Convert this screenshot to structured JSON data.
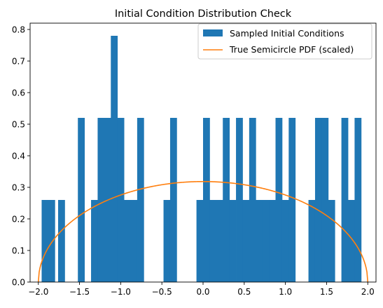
{
  "chart_data": {
    "type": "bar",
    "title": "Initial Condition Distribution Check",
    "xlabel": "",
    "ylabel": "",
    "xlim": [
      -2.1,
      2.1
    ],
    "ylim": [
      0,
      0.82
    ],
    "grid": false,
    "legend_position": "top-right",
    "x_ticks": [
      -2.0,
      -1.5,
      -1.0,
      -0.5,
      0.0,
      0.5,
      1.0,
      1.5,
      2.0
    ],
    "x_tick_labels": [
      "−2.0",
      "−1.5",
      "−1.0",
      "−0.5",
      "0.0",
      "0.5",
      "1.0",
      "1.5",
      "2.0"
    ],
    "y_ticks": [
      0.0,
      0.1,
      0.2,
      0.3,
      0.4,
      0.5,
      0.6,
      0.7,
      0.8
    ],
    "y_tick_labels": [
      "0.0",
      "0.1",
      "0.2",
      "0.3",
      "0.4",
      "0.5",
      "0.6",
      "0.7",
      "0.8"
    ],
    "series": [
      {
        "name": "Sampled Initial Conditions",
        "type": "histogram",
        "color": "#1f77b4",
        "bins": [
          {
            "x0": -1.96,
            "x1": -1.88,
            "value": 0.26
          },
          {
            "x0": -1.88,
            "x1": -1.8,
            "value": 0.26
          },
          {
            "x0": -1.76,
            "x1": -1.68,
            "value": 0.26
          },
          {
            "x0": -1.52,
            "x1": -1.44,
            "value": 0.52
          },
          {
            "x0": -1.36,
            "x1": -1.28,
            "value": 0.26
          },
          {
            "x0": -1.28,
            "x1": -1.2,
            "value": 0.52
          },
          {
            "x0": -1.2,
            "x1": -1.12,
            "value": 0.52
          },
          {
            "x0": -1.12,
            "x1": -1.04,
            "value": 0.78
          },
          {
            "x0": -1.04,
            "x1": -0.96,
            "value": 0.52
          },
          {
            "x0": -0.96,
            "x1": -0.88,
            "value": 0.26
          },
          {
            "x0": -0.88,
            "x1": -0.8,
            "value": 0.26
          },
          {
            "x0": -0.8,
            "x1": -0.72,
            "value": 0.52
          },
          {
            "x0": -0.48,
            "x1": -0.4,
            "value": 0.26
          },
          {
            "x0": -0.4,
            "x1": -0.32,
            "value": 0.52
          },
          {
            "x0": -0.08,
            "x1": 0.0,
            "value": 0.26
          },
          {
            "x0": 0.0,
            "x1": 0.08,
            "value": 0.52
          },
          {
            "x0": 0.08,
            "x1": 0.16,
            "value": 0.26
          },
          {
            "x0": 0.16,
            "x1": 0.24,
            "value": 0.26
          },
          {
            "x0": 0.24,
            "x1": 0.32,
            "value": 0.52
          },
          {
            "x0": 0.32,
            "x1": 0.4,
            "value": 0.26
          },
          {
            "x0": 0.4,
            "x1": 0.48,
            "value": 0.52
          },
          {
            "x0": 0.48,
            "x1": 0.56,
            "value": 0.26
          },
          {
            "x0": 0.56,
            "x1": 0.64,
            "value": 0.52
          },
          {
            "x0": 0.64,
            "x1": 0.72,
            "value": 0.26
          },
          {
            "x0": 0.72,
            "x1": 0.8,
            "value": 0.26
          },
          {
            "x0": 0.8,
            "x1": 0.88,
            "value": 0.26
          },
          {
            "x0": 0.88,
            "x1": 0.96,
            "value": 0.52
          },
          {
            "x0": 0.96,
            "x1": 1.04,
            "value": 0.26
          },
          {
            "x0": 1.04,
            "x1": 1.12,
            "value": 0.52
          },
          {
            "x0": 1.28,
            "x1": 1.36,
            "value": 0.26
          },
          {
            "x0": 1.36,
            "x1": 1.44,
            "value": 0.52
          },
          {
            "x0": 1.44,
            "x1": 1.52,
            "value": 0.52
          },
          {
            "x0": 1.52,
            "x1": 1.6,
            "value": 0.26
          },
          {
            "x0": 1.68,
            "x1": 1.76,
            "value": 0.52
          },
          {
            "x0": 1.76,
            "x1": 1.84,
            "value": 0.26
          },
          {
            "x0": 1.84,
            "x1": 1.92,
            "value": 0.52
          }
        ]
      },
      {
        "name": "True Semicircle PDF (scaled)",
        "type": "line",
        "color": "#ff7f0e",
        "function": "sqrt(4 - x^2) / (2*pi)",
        "x_range": [
          -2.0,
          2.0
        ],
        "peak": 0.318
      }
    ]
  }
}
